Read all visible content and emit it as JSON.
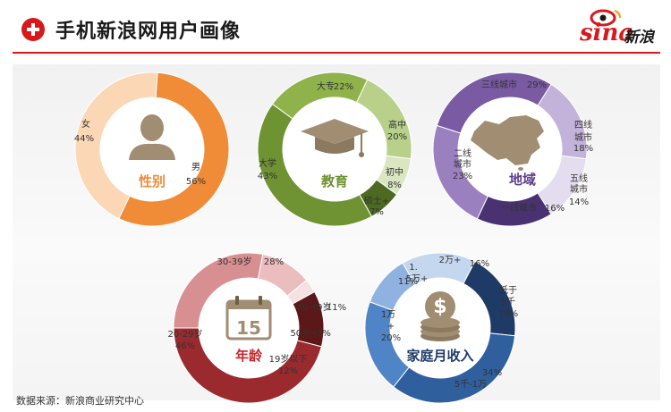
{
  "header": {
    "title": "手机新浪网用户画像",
    "logo_word": "sina",
    "logo_cn": "新浪"
  },
  "source": "数据来源：新浪商业研究中心",
  "chart_data": [
    {
      "type": "pie",
      "title": "性别",
      "icon": "person-icon",
      "slices": [
        {
          "label": "男",
          "value": 56,
          "text": "56%",
          "color": "#f08c38"
        },
        {
          "label": "女",
          "value": 44,
          "text": "44%",
          "color": "#fbd7b6"
        }
      ]
    },
    {
      "type": "pie",
      "title": "教育",
      "icon": "graduation-cap-icon",
      "slices": [
        {
          "label": "大专",
          "value": 22,
          "text": "22%",
          "color": "#8fb24a"
        },
        {
          "label": "高中",
          "value": 20,
          "text": "20%",
          "color": "#b8d08a"
        },
        {
          "label": "初中",
          "value": 8,
          "text": "8%",
          "color": "#d9e6c0"
        },
        {
          "label": "硕士+",
          "value": 7,
          "text": "7%",
          "color": "#4e6a22"
        },
        {
          "label": "大学",
          "value": 43,
          "text": "43%",
          "color": "#6f9332"
        }
      ]
    },
    {
      "type": "pie",
      "title": "地域",
      "icon": "china-map-icon",
      "slices": [
        {
          "label": "三线城市",
          "value": 29,
          "text": "29%",
          "color": "#7a5aa3"
        },
        {
          "label": "四线城市",
          "value": 18,
          "text": "18%",
          "color": "#c3b3da"
        },
        {
          "label": "五线城市",
          "value": 14,
          "text": "14%",
          "color": "#e4dcef"
        },
        {
          "label": "一线城市",
          "value": 16,
          "text": "16%",
          "color": "#4a3272"
        },
        {
          "label": "二线城市",
          "value": 23,
          "text": "23%",
          "color": "#9a80bf"
        }
      ]
    },
    {
      "type": "pie",
      "title": "年龄",
      "icon": "calendar-icon",
      "icon_text": "15",
      "slices": [
        {
          "label": "30-39岁",
          "value": 28,
          "text": "28%",
          "color": "#d88f92"
        },
        {
          "label": "40-49岁",
          "value": 11,
          "text": "11%",
          "color": "#ebbdbf"
        },
        {
          "label": "50岁+",
          "value": 3,
          "text": "3%",
          "color": "#f6e1e2"
        },
        {
          "label": "19岁以下",
          "value": 12,
          "text": "12%",
          "color": "#5c1719"
        },
        {
          "label": "20-29岁",
          "value": 46,
          "text": "46%",
          "color": "#9a2a2e"
        }
      ]
    },
    {
      "type": "pie",
      "title": "家庭月收入",
      "icon": "coins-icon",
      "slices": [
        {
          "label": "2万+",
          "value": 16,
          "text": "16%",
          "color": "#c5d7ee"
        },
        {
          "label": "低于5千",
          "value": 19,
          "text": "19%",
          "color": "#1e3a66"
        },
        {
          "label": "5千-1万",
          "value": 34,
          "text": "34%",
          "color": "#2f5f9c"
        },
        {
          "label": "1万+",
          "value": 20,
          "text": "20%",
          "color": "#4f84c6"
        },
        {
          "label": "1.5万+",
          "value": 11,
          "text": "11%",
          "color": "#8fb2e0"
        }
      ]
    }
  ]
}
